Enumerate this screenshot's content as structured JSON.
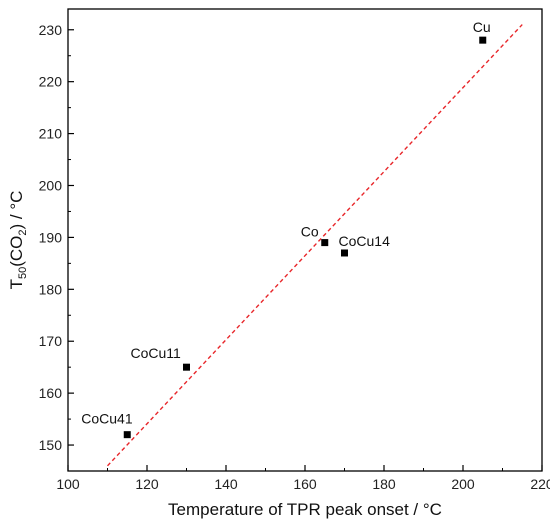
{
  "chart_data": {
    "type": "scatter",
    "title": "",
    "xlabel": "Temperature of TPR peak onset / °C",
    "ylabel_main": "T",
    "ylabel_sub1": "50",
    "ylabel_mid": "(CO",
    "ylabel_sub2": "2",
    "ylabel_end": ") / °C",
    "xlim": [
      100,
      220
    ],
    "ylim": [
      145,
      234
    ],
    "xticks": [
      100,
      120,
      140,
      160,
      180,
      200,
      220
    ],
    "yticks": [
      150,
      160,
      170,
      180,
      190,
      200,
      210,
      220,
      230
    ],
    "grid": false,
    "points": [
      {
        "label": "CoCu41",
        "x": 115,
        "y": 152
      },
      {
        "label": "CoCu11",
        "x": 130,
        "y": 165
      },
      {
        "label": "Co",
        "x": 165,
        "y": 189
      },
      {
        "label": "CoCu14",
        "x": 170,
        "y": 187
      },
      {
        "label": "Cu",
        "x": 205,
        "y": 228
      }
    ],
    "fit_line": {
      "x": [
        110,
        215
      ],
      "y": [
        146,
        231
      ]
    },
    "colors": {
      "points": "#000000",
      "fit_line": "#e8262a",
      "axis": "#000000"
    }
  }
}
